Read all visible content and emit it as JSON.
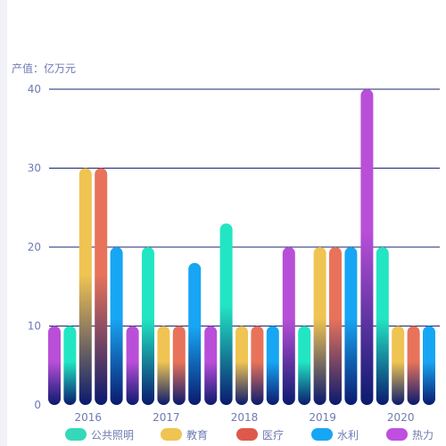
{
  "chart_data": {
    "type": "bar",
    "ylabel": "产值：亿万元",
    "ylim": [
      0,
      40
    ],
    "y_ticks": [
      0,
      10,
      20,
      30,
      40
    ],
    "categories": [
      "2016",
      "2017",
      "2018",
      "2019",
      "2020"
    ],
    "series": [
      {
        "name": "热力",
        "color": "#b94fd8",
        "values": [
          10,
          10,
          10,
          20,
          40
        ]
      },
      {
        "name": "公共照明",
        "color": "#22e6c3",
        "values": [
          10,
          20,
          23,
          10,
          20
        ]
      },
      {
        "name": "教育",
        "color": "#f0c452",
        "values": [
          30,
          10,
          10,
          20,
          10
        ]
      },
      {
        "name": "医疗",
        "color": "#e8735a",
        "values": [
          30,
          10,
          10,
          20,
          10
        ]
      },
      {
        "name": "水利",
        "color": "#17a6f3",
        "values": [
          20,
          18,
          10,
          20,
          10
        ]
      }
    ],
    "legend": [
      {
        "name": "公共照明",
        "color": "#34d9b9"
      },
      {
        "name": "教育",
        "color": "#f0c452"
      },
      {
        "name": "医疗",
        "color": "#dd5a4b"
      },
      {
        "name": "水利",
        "color": "#17a6f3"
      },
      {
        "name": "热力",
        "color": "#c04ee0"
      }
    ],
    "bar_bottom_color": "#0a1a6e",
    "gridline_color": "#1b2470",
    "axis_text_color": "#6f7ab3",
    "legend_position": "bottom"
  }
}
